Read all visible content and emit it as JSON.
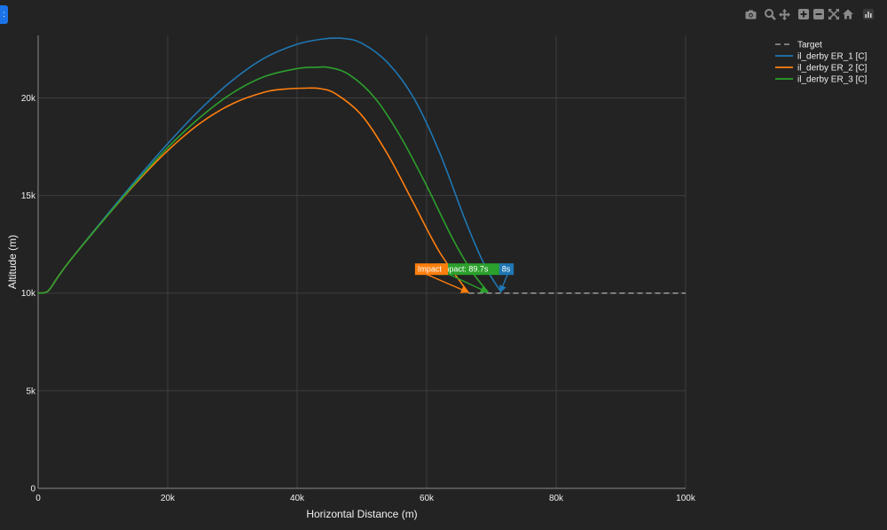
{
  "corner_button": {
    "label": ":"
  },
  "modebar": {
    "icons": [
      "camera-icon",
      "zoom-icon",
      "pan-icon",
      "zoom-in-icon",
      "zoom-out-icon",
      "autoscale-icon",
      "reset-axes-icon",
      "plotly-logo-icon"
    ],
    "color": "#8a8a8a"
  },
  "chart_data": {
    "type": "line",
    "title": "",
    "xlabel": "Horizontal Distance (m)",
    "ylabel": "Altitude (m)",
    "xlim": [
      0,
      100000
    ],
    "ylim": [
      0,
      23200
    ],
    "x_ticks": [
      0,
      20000,
      40000,
      60000,
      80000,
      100000
    ],
    "x_tick_labels": [
      "0",
      "20k",
      "40k",
      "60k",
      "80k",
      "100k"
    ],
    "y_ticks": [
      0,
      5000,
      10000,
      15000,
      20000
    ],
    "y_tick_labels": [
      "0",
      "5k",
      "10k",
      "15k",
      "20k"
    ],
    "grid": true,
    "legend_position": "top-right",
    "colors": {
      "background": "#232323",
      "grid": "#3e3e3e",
      "axis": "#8a8a8a",
      "text": "#f0f0f0"
    },
    "series": [
      {
        "name": "Target",
        "color": "#b0b0b0",
        "dash": true,
        "x": [
          66500,
          100000
        ],
        "y": [
          10000,
          10000
        ]
      },
      {
        "name": "il_derby ER_1 [C]",
        "color": "#1f77b4",
        "x": [
          0,
          1500,
          3000,
          5000,
          10000,
          15000,
          20000,
          25000,
          30000,
          35000,
          40000,
          44000,
          47000,
          50000,
          54000,
          58000,
          62000,
          66000,
          69000,
          71500
        ],
        "y": [
          10000,
          10100,
          10800,
          11700,
          13750,
          15750,
          17650,
          19400,
          20900,
          22050,
          22750,
          23020,
          23050,
          22800,
          21800,
          20000,
          17200,
          13700,
          11400,
          10050
        ]
      },
      {
        "name": "il_derby ER_2 [C]",
        "color": "#ff7f0e",
        "x": [
          0,
          1500,
          3000,
          5000,
          10000,
          15000,
          20000,
          25000,
          30000,
          35000,
          38000,
          41000,
          43500,
          46000,
          50000,
          54000,
          58000,
          62000,
          66500
        ],
        "y": [
          10000,
          10100,
          10800,
          11700,
          13700,
          15600,
          17300,
          18700,
          19700,
          20300,
          20450,
          20500,
          20480,
          20200,
          19100,
          17100,
          14600,
          12100,
          10000
        ]
      },
      {
        "name": "il_derby ER_3 [C]",
        "color": "#2ca02c",
        "x": [
          0,
          1500,
          3000,
          5000,
          10000,
          15000,
          20000,
          25000,
          30000,
          35000,
          40000,
          43000,
          45000,
          48000,
          52000,
          56000,
          60000,
          64000,
          67000,
          69500
        ],
        "y": [
          10000,
          10100,
          10800,
          11700,
          13700,
          15650,
          17450,
          19000,
          20250,
          21100,
          21500,
          21570,
          21550,
          21200,
          20000,
          18000,
          15500,
          12800,
          11100,
          10050
        ]
      }
    ],
    "annotations": [
      {
        "text": "Impact: 89.7s",
        "series": "il_derby ER_3 [C]",
        "color": "#2ca02c",
        "x": 69500,
        "y": 10000,
        "label_x": 61700,
        "label_y": 11250
      },
      {
        "text": "Impact",
        "series": "il_derby ER_2 [C]",
        "color": "#ff7f0e",
        "x": 66500,
        "y": 10000,
        "label_x": 58200,
        "label_y": 11250
      },
      {
        "text": "8s",
        "series": "il_derby ER_1 [C]",
        "color": "#1f77b4",
        "x": 71500,
        "y": 10000,
        "label_x": 71200,
        "label_y": 11250
      }
    ]
  }
}
